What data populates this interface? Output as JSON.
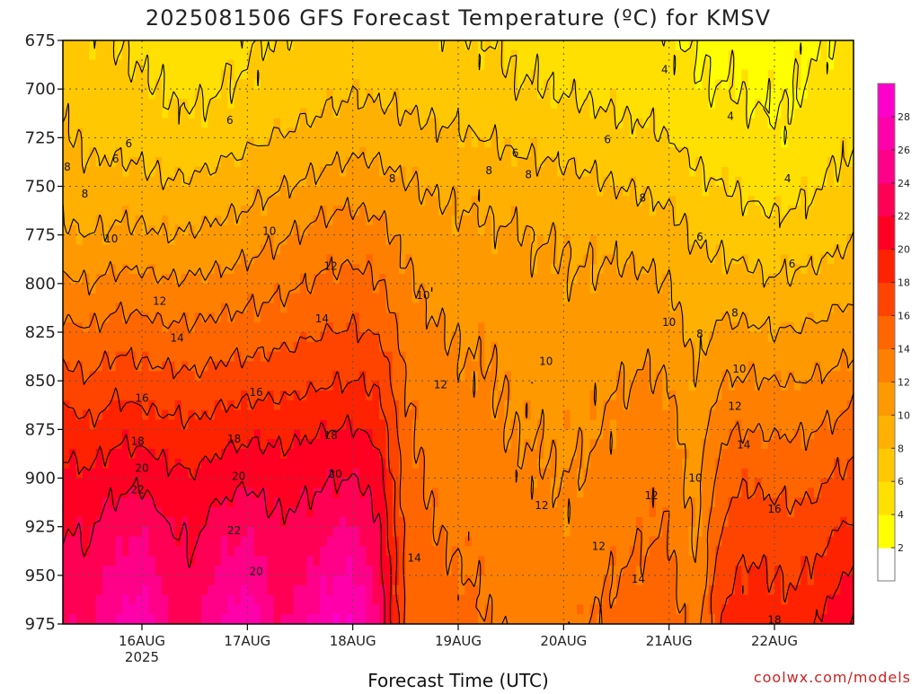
{
  "title": "2025081506 GFS Forecast Temperature (ºC) for KMSV",
  "credit": "coolwx.com/models",
  "chart_data": {
    "type": "heatmap",
    "title": "2025081506 GFS Forecast Temperature (ºC) for KMSV",
    "xlabel": "Forecast Time (UTC)",
    "ylabel": "",
    "y_ticks": [
      675,
      700,
      725,
      750,
      775,
      800,
      825,
      850,
      875,
      900,
      925,
      950,
      975
    ],
    "ylim": [
      975,
      675
    ],
    "x_ticks": [
      {
        "hour": 18,
        "label": "16AUG",
        "sublabel": "2025"
      },
      {
        "hour": 42,
        "label": "17AUG",
        "sublabel": ""
      },
      {
        "hour": 66,
        "label": "18AUG",
        "sublabel": ""
      },
      {
        "hour": 90,
        "label": "19AUG",
        "sublabel": ""
      },
      {
        "hour": 114,
        "label": "20AUG",
        "sublabel": ""
      },
      {
        "hour": 138,
        "label": "21AUG",
        "sublabel": ""
      },
      {
        "hour": 162,
        "label": "22AUG",
        "sublabel": ""
      }
    ],
    "xlim": [
      0,
      180
    ],
    "grid": true,
    "colorbar": {
      "ticks": [
        2,
        4,
        6,
        8,
        10,
        12,
        14,
        16,
        18,
        20,
        22,
        24,
        26,
        28
      ],
      "colors": [
        "#ffffff",
        "#ffff00",
        "#ffe000",
        "#ffc800",
        "#ffb000",
        "#ff9900",
        "#ff8000",
        "#ff6600",
        "#ff4400",
        "#ff2200",
        "#ff0022",
        "#ff0055",
        "#ff0088",
        "#ff00aa",
        "#ff00cc"
      ]
    },
    "contour_levels": [
      4,
      6,
      8,
      10,
      12,
      14,
      16,
      18,
      20,
      22
    ],
    "columns": [
      {
        "hour": 0,
        "temps": [
          7.0,
          7.4,
          8.2,
          9.0,
          10.4,
          12.4,
          14.6,
          16.8,
          19.2,
          20.8,
          22.0,
          23.0,
          24.0
        ]
      },
      {
        "hour": 6,
        "temps": [
          6.4,
          6.8,
          7.6,
          8.6,
          10.0,
          12.0,
          14.2,
          16.2,
          18.4,
          20.4,
          21.6,
          22.6,
          23.6
        ]
      },
      {
        "hour": 12,
        "temps": [
          6.0,
          6.6,
          7.4,
          8.8,
          10.4,
          12.6,
          15.0,
          17.2,
          19.4,
          21.4,
          23.0,
          24.6,
          26.0
        ]
      },
      {
        "hour": 18,
        "temps": [
          5.6,
          6.2,
          7.2,
          8.6,
          10.4,
          12.6,
          14.8,
          16.8,
          19.0,
          21.6,
          23.6,
          25.8,
          27.6
        ]
      },
      {
        "hour": 24,
        "temps": [
          5.2,
          5.8,
          6.8,
          8.2,
          10.0,
          12.2,
          14.4,
          16.6,
          18.6,
          20.6,
          22.0,
          23.0,
          24.0
        ]
      },
      {
        "hour": 30,
        "temps": [
          5.0,
          5.6,
          6.6,
          8.4,
          10.2,
          12.4,
          14.4,
          16.4,
          18.4,
          20.2,
          21.6,
          22.4,
          23.2
        ]
      },
      {
        "hour": 36,
        "temps": [
          5.4,
          6.0,
          7.2,
          8.8,
          10.6,
          12.6,
          14.8,
          16.8,
          19.0,
          21.2,
          23.0,
          24.6,
          26.2
        ]
      },
      {
        "hour": 42,
        "temps": [
          5.8,
          6.4,
          7.6,
          9.2,
          11.0,
          13.0,
          15.0,
          17.0,
          19.4,
          21.6,
          23.6,
          25.8,
          27.8
        ]
      },
      {
        "hour": 48,
        "temps": [
          6.0,
          6.8,
          8.0,
          9.8,
          11.6,
          13.4,
          15.2,
          17.2,
          19.4,
          21.0,
          22.4,
          23.2,
          24.0
        ]
      },
      {
        "hour": 54,
        "temps": [
          6.2,
          7.0,
          8.4,
          10.2,
          12.2,
          13.8,
          15.6,
          17.4,
          19.6,
          21.2,
          22.6,
          23.6,
          24.6
        ]
      },
      {
        "hour": 60,
        "temps": [
          6.6,
          7.4,
          8.8,
          10.8,
          12.8,
          14.4,
          16.0,
          17.8,
          20.0,
          21.8,
          23.6,
          25.6,
          27.6
        ]
      },
      {
        "hour": 66,
        "temps": [
          6.8,
          7.8,
          9.2,
          11.2,
          13.0,
          14.6,
          16.2,
          18.0,
          20.2,
          22.0,
          24.2,
          26.4,
          28.2
        ]
      },
      {
        "hour": 72,
        "temps": [
          6.8,
          7.6,
          9.0,
          11.0,
          12.6,
          14.2,
          15.8,
          17.6,
          19.4,
          21.0,
          22.2,
          23.0,
          23.6
        ]
      },
      {
        "hour": 78,
        "temps": [
          6.6,
          7.4,
          8.6,
          10.2,
          11.4,
          12.4,
          13.2,
          14.0,
          14.6,
          15.0,
          15.4,
          15.6,
          15.8
        ]
      },
      {
        "hour": 84,
        "temps": [
          6.4,
          7.2,
          8.4,
          9.8,
          10.8,
          11.6,
          12.2,
          12.6,
          13.0,
          13.6,
          14.0,
          14.8,
          15.4
        ]
      },
      {
        "hour": 90,
        "temps": [
          6.2,
          7.0,
          8.2,
          9.6,
          10.4,
          11.0,
          11.8,
          12.4,
          12.8,
          13.2,
          13.6,
          14.2,
          14.8
        ]
      },
      {
        "hour": 96,
        "temps": [
          6.0,
          6.8,
          8.0,
          9.4,
          10.4,
          11.0,
          11.6,
          12.2,
          12.4,
          12.8,
          13.2,
          13.6,
          14.0
        ]
      },
      {
        "hour": 102,
        "temps": [
          5.6,
          6.2,
          7.6,
          9.0,
          10.2,
          10.8,
          11.4,
          11.8,
          12.0,
          12.4,
          12.8,
          13.2,
          13.8
        ]
      },
      {
        "hour": 108,
        "temps": [
          5.4,
          6.0,
          7.4,
          8.8,
          10.0,
          10.4,
          11.0,
          11.4,
          11.8,
          12.2,
          12.6,
          13.0,
          13.4
        ]
      },
      {
        "hour": 114,
        "temps": [
          5.2,
          5.8,
          7.2,
          8.6,
          9.8,
          10.2,
          10.8,
          11.2,
          11.6,
          12.0,
          12.4,
          13.0,
          13.6
        ]
      },
      {
        "hour": 120,
        "temps": [
          5.0,
          5.6,
          7.0,
          8.4,
          9.6,
          10.2,
          10.8,
          11.4,
          11.8,
          12.2,
          12.8,
          13.4,
          14.0
        ]
      },
      {
        "hour": 126,
        "temps": [
          4.8,
          5.4,
          6.6,
          8.0,
          9.4,
          10.4,
          11.2,
          11.8,
          12.4,
          12.8,
          13.4,
          14.0,
          14.6
        ]
      },
      {
        "hour": 132,
        "temps": [
          4.6,
          5.2,
          6.4,
          7.8,
          9.2,
          10.4,
          11.4,
          12.2,
          12.8,
          13.4,
          13.8,
          14.4,
          15.0
        ]
      },
      {
        "hour": 138,
        "temps": [
          4.2,
          4.8,
          6.0,
          7.4,
          8.8,
          10.0,
          11.0,
          12.0,
          12.8,
          13.4,
          14.0,
          14.6,
          15.2
        ]
      },
      {
        "hour": 144,
        "temps": [
          3.8,
          4.2,
          5.2,
          6.6,
          7.8,
          8.6,
          9.4,
          10.2,
          10.8,
          11.2,
          11.6,
          12.2,
          12.8
        ]
      },
      {
        "hour": 150,
        "temps": [
          3.6,
          4.0,
          4.8,
          6.0,
          7.4,
          8.8,
          10.4,
          12.0,
          13.6,
          15.0,
          16.2,
          17.2,
          18.0
        ]
      },
      {
        "hour": 156,
        "temps": [
          3.4,
          3.8,
          4.6,
          5.6,
          7.0,
          8.6,
          10.4,
          12.2,
          14.0,
          15.8,
          17.2,
          18.4,
          19.2
        ]
      },
      {
        "hour": 162,
        "temps": [
          3.2,
          3.6,
          4.2,
          5.2,
          6.6,
          8.2,
          10.0,
          12.0,
          13.8,
          15.4,
          16.8,
          18.0,
          18.8
        ]
      },
      {
        "hour": 168,
        "temps": [
          3.6,
          4.0,
          4.6,
          5.6,
          6.8,
          8.4,
          10.2,
          12.0,
          13.8,
          15.2,
          16.6,
          17.8,
          18.6
        ]
      },
      {
        "hour": 174,
        "temps": [
          4.0,
          4.6,
          5.2,
          6.2,
          7.2,
          8.8,
          10.6,
          12.4,
          14.2,
          15.8,
          17.4,
          19.2,
          21.0
        ]
      },
      {
        "hour": 180,
        "temps": [
          4.4,
          5.0,
          5.8,
          6.8,
          7.8,
          9.4,
          11.2,
          13.0,
          15.0,
          16.8,
          18.4,
          20.2,
          22.0
        ]
      }
    ],
    "contour_labels": [
      {
        "hour": 1,
        "pressure": 740,
        "value": "8"
      },
      {
        "hour": 5,
        "pressure": 754,
        "value": "8"
      },
      {
        "hour": 11,
        "pressure": 777,
        "value": "10"
      },
      {
        "hour": 12,
        "pressure": 736,
        "value": "6"
      },
      {
        "hour": 15,
        "pressure": 728,
        "value": "6"
      },
      {
        "hour": 17,
        "pressure": 881,
        "value": "18"
      },
      {
        "hour": 18,
        "pressure": 859,
        "value": "16"
      },
      {
        "hour": 17,
        "pressure": 906,
        "value": "22"
      },
      {
        "hour": 18,
        "pressure": 895,
        "value": "20"
      },
      {
        "hour": 22,
        "pressure": 809,
        "value": "12"
      },
      {
        "hour": 26,
        "pressure": 828,
        "value": "14"
      },
      {
        "hour": 38,
        "pressure": 716,
        "value": "6"
      },
      {
        "hour": 39,
        "pressure": 880,
        "value": "18"
      },
      {
        "hour": 40,
        "pressure": 899,
        "value": "20"
      },
      {
        "hour": 39,
        "pressure": 927,
        "value": "22"
      },
      {
        "hour": 44,
        "pressure": 856,
        "value": "16"
      },
      {
        "hour": 44,
        "pressure": 948,
        "value": "20"
      },
      {
        "hour": 47,
        "pressure": 773,
        "value": "10"
      },
      {
        "hour": 59,
        "pressure": 818,
        "value": "14"
      },
      {
        "hour": 61,
        "pressure": 791,
        "value": "12"
      },
      {
        "hour": 61,
        "pressure": 878,
        "value": "18"
      },
      {
        "hour": 62,
        "pressure": 898,
        "value": "20"
      },
      {
        "hour": 75,
        "pressure": 746,
        "value": "8"
      },
      {
        "hour": 80,
        "pressure": 941,
        "value": "14"
      },
      {
        "hour": 82,
        "pressure": 806,
        "value": "10"
      },
      {
        "hour": 86,
        "pressure": 852,
        "value": "12"
      },
      {
        "hour": 97,
        "pressure": 742,
        "value": "8"
      },
      {
        "hour": 103,
        "pressure": 733,
        "value": "6"
      },
      {
        "hour": 106,
        "pressure": 744,
        "value": "8"
      },
      {
        "hour": 109,
        "pressure": 914,
        "value": "12"
      },
      {
        "hour": 110,
        "pressure": 840,
        "value": "10"
      },
      {
        "hour": 122,
        "pressure": 935,
        "value": "12"
      },
      {
        "hour": 124,
        "pressure": 726,
        "value": "6"
      },
      {
        "hour": 132,
        "pressure": 756,
        "value": "8"
      },
      {
        "hour": 131,
        "pressure": 952,
        "value": "14"
      },
      {
        "hour": 134,
        "pressure": 909,
        "value": "12"
      },
      {
        "hour": 137,
        "pressure": 690,
        "value": "4"
      },
      {
        "hour": 138,
        "pressure": 820,
        "value": "10"
      },
      {
        "hour": 145,
        "pressure": 826,
        "value": "8"
      },
      {
        "hour": 145,
        "pressure": 776,
        "value": "6"
      },
      {
        "hour": 144,
        "pressure": 900,
        "value": "10"
      },
      {
        "hour": 152,
        "pressure": 714,
        "value": "4"
      },
      {
        "hour": 153,
        "pressure": 815,
        "value": "8"
      },
      {
        "hour": 154,
        "pressure": 844,
        "value": "10"
      },
      {
        "hour": 153,
        "pressure": 863,
        "value": "12"
      },
      {
        "hour": 155,
        "pressure": 883,
        "value": "14"
      },
      {
        "hour": 162,
        "pressure": 916,
        "value": "16"
      },
      {
        "hour": 162,
        "pressure": 973,
        "value": "18"
      },
      {
        "hour": 165,
        "pressure": 746,
        "value": "4"
      },
      {
        "hour": 166,
        "pressure": 790,
        "value": "6"
      }
    ]
  }
}
